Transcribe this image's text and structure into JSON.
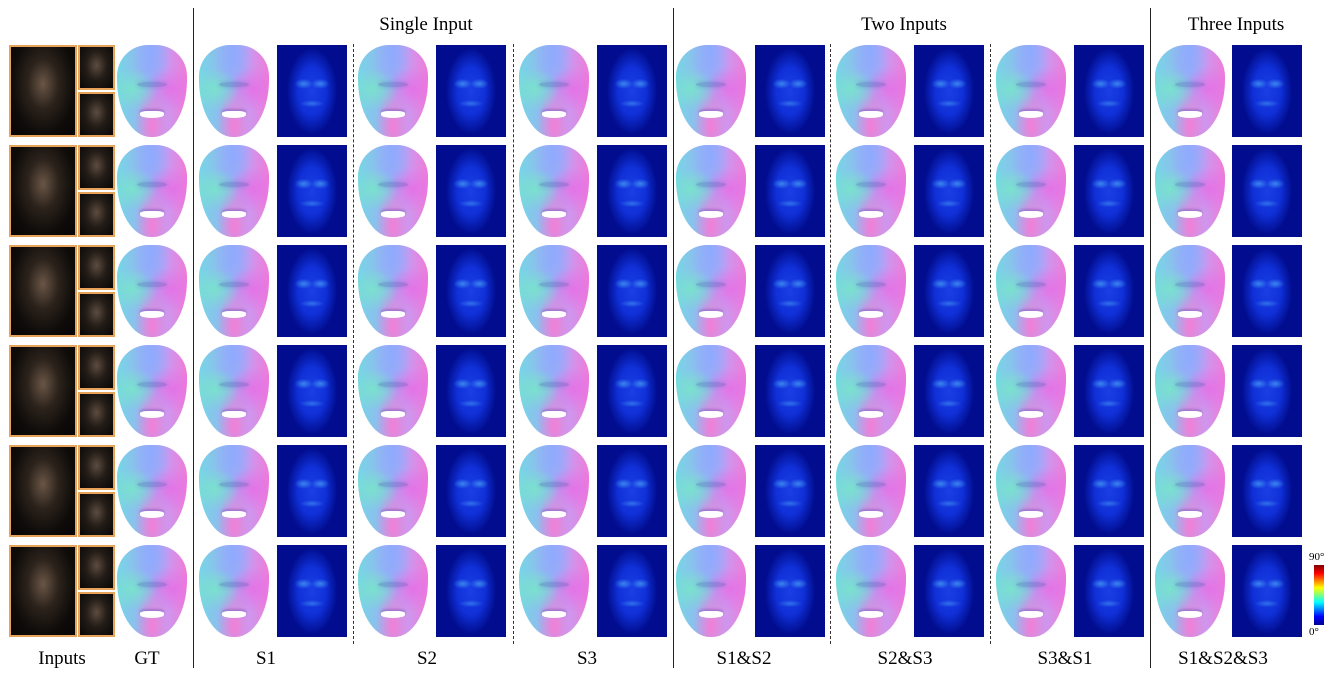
{
  "group_headers": {
    "single": "Single Input",
    "two": "Two Inputs",
    "three": "Three Inputs"
  },
  "columns": [
    "Inputs",
    "GT",
    "S1",
    "S2",
    "S3",
    "S1&S2",
    "S2&S3",
    "S3&S1",
    "S1&S2&S3"
  ],
  "colorbar": {
    "max": "90°",
    "min": "0°"
  },
  "rows": 6
}
